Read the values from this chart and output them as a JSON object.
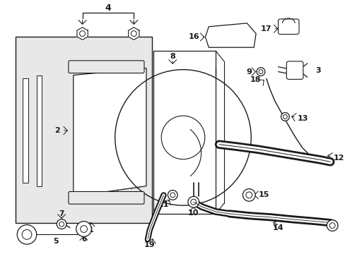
{
  "bg_color": "#ffffff",
  "line_color": "#1a1a1a",
  "box_fill": "#e8e8e8",
  "fig_width": 4.89,
  "fig_height": 3.6,
  "dpi": 100
}
